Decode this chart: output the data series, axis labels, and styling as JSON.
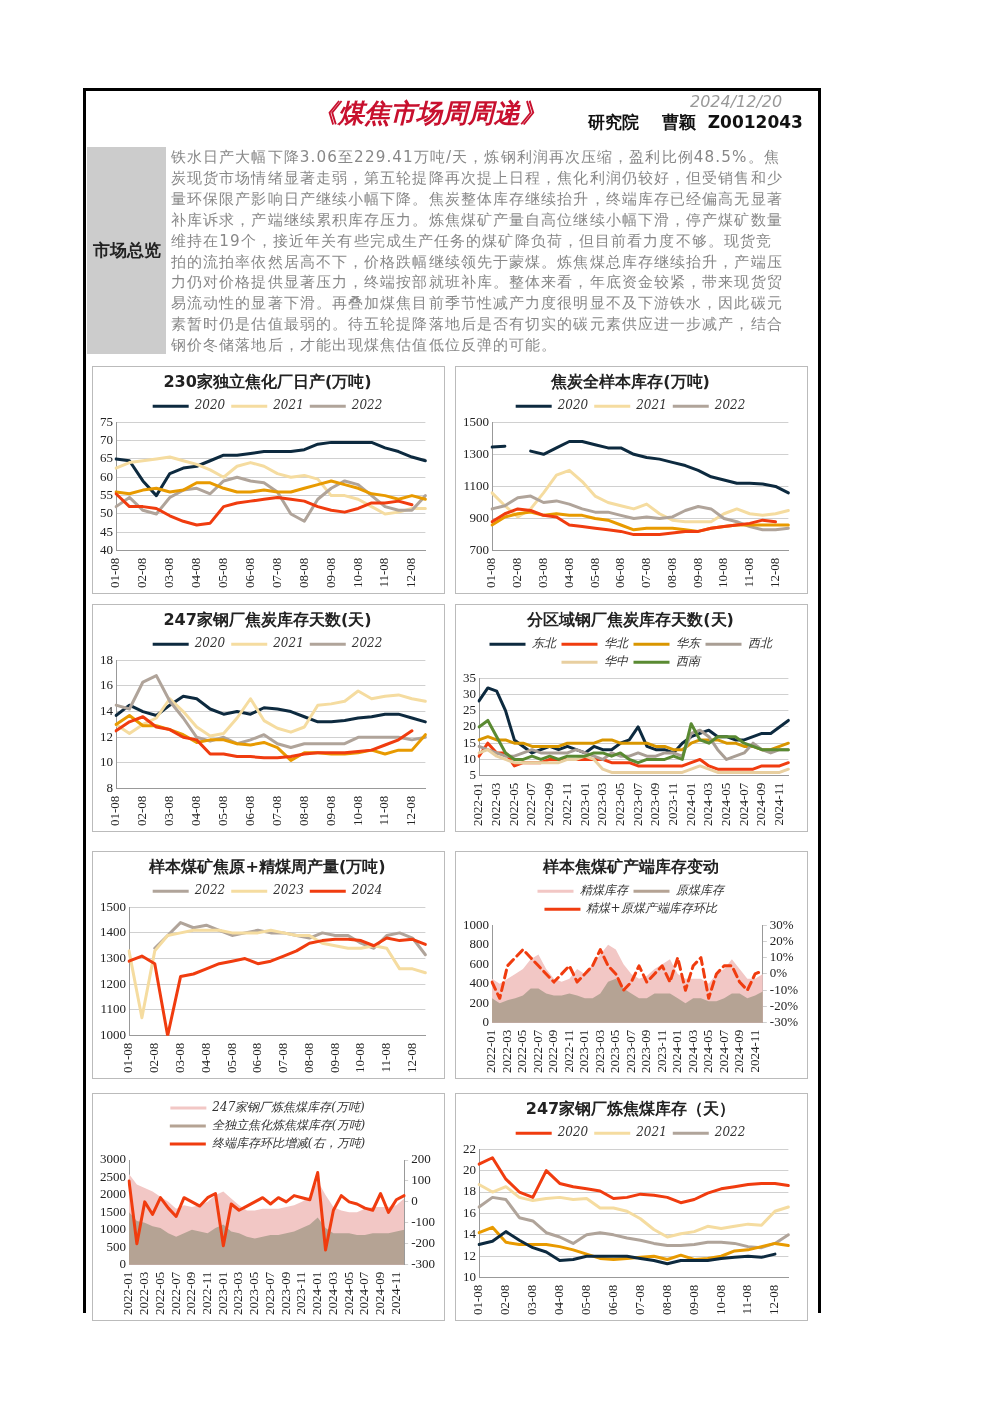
{
  "chart_data": [
    {
      "type": "other",
      "title": "《煤焦市场周周递》",
      "annotations": [
        "2024/12/20",
        "研究院　 曹颖  Z0012043",
        "市场总览",
        "铁水日产大幅下降3.06至229.41万吨/天，炼钢利润再次压缩，盈利比例48.5%。焦炭现货市场情绪显著走弱，第五轮提降再次提上日程，焦化利润仍较好，但受销售和少量环保限产影响日产继续小幅下降。焦炭整体库存继续抬升，终端库存已经偏高无显著补库诉求，产端继续累积库存压力。炼焦煤矿产量自高位继续小幅下滑，停产煤矿数量维持在19个，接近年关有些完成生产任务的煤矿降负荷，但目前看力度不够。现货竞拍的流拍率依然居高不下，价格跌幅继续领先于蒙煤。炼焦煤总库存继续抬升，产端压力仍对价格提供显著压力，终端按部就班补库。整体来看，年底资金较紧，带来现货贸易流动性的显著下滑。再叠加煤焦目前季节性减产力度很明显不及下游铁水，因此碳元素暂时仍是估值最弱的。待五轮提降落地后是否有切实的碳元素供应进一步减产，结合钢价冬储落地后，才能出现煤焦估值低位反弹的可能。"
      ]
    },
    {
      "type": "line",
      "title": "230家独立焦化厂日产(万吨)",
      "legend": "top",
      "grid": "y",
      "marker": "none",
      "line_style": "solid",
      "categories": [
        "01-08",
        null,
        "02-08",
        null,
        "03-08",
        null,
        "04-08",
        null,
        "05-08",
        null,
        "06-08",
        null,
        "07-08",
        null,
        "08-08",
        null,
        "09-08",
        null,
        "10-08",
        null,
        "11-08",
        null,
        "12-08",
        null
      ],
      "ylim": [
        40,
        75
      ],
      "yticks": [
        40,
        45,
        50,
        55,
        60,
        65,
        70,
        75
      ],
      "series": [
        {
          "name": "2020",
          "color": "#0d2a3f",
          "values": [
            65,
            64.5,
            59,
            55,
            61,
            62.5,
            63,
            64.5,
            66,
            66,
            66.5,
            67,
            67,
            67,
            67.5,
            69,
            69.5,
            69.5,
            69.5,
            69.5,
            68,
            67,
            65.5,
            64.5
          ]
        },
        {
          "name": "2021",
          "color": "#f5dca0",
          "values": [
            62.5,
            64,
            64.5,
            65,
            65.5,
            64.5,
            63.5,
            62,
            60,
            63,
            64,
            63,
            61,
            60,
            60.5,
            59.5,
            55,
            55,
            54,
            52,
            50,
            50.5,
            51.5,
            51.5
          ]
        },
        {
          "name": "2022",
          "color": "#b0a49a",
          "values": [
            52,
            54.5,
            51,
            50,
            54.5,
            56.5,
            57,
            55.5,
            59,
            60,
            59,
            58.5,
            56,
            50,
            48,
            54,
            57,
            59,
            58,
            55,
            52,
            51,
            51,
            55
          ]
        },
        {
          "color": "#e89a00",
          "values": [
            56,
            55.5,
            56.5,
            57,
            56,
            56.5,
            58.5,
            58.5,
            57,
            56,
            56,
            56.5,
            56,
            56,
            57,
            58,
            59,
            58,
            57,
            55.5,
            55,
            54,
            55,
            54
          ]
        },
        {
          "color": "#f03c0f",
          "values": [
            55.5,
            52,
            52,
            51.5,
            49.5,
            48,
            47,
            47.5,
            52,
            53,
            53.5,
            54,
            54.5,
            54,
            53.5,
            52,
            51,
            50.5,
            51.5,
            53,
            53,
            53.5,
            52.5,
            null
          ]
        }
      ]
    },
    {
      "type": "line",
      "title": "焦炭全样本库存(万吨)",
      "legend": "top",
      "grid": "y",
      "marker": "none",
      "line_style": "solid",
      "categories": [
        "01-08",
        null,
        "02-08",
        null,
        "03-08",
        null,
        "04-08",
        null,
        "05-08",
        null,
        "06-08",
        null,
        "07-08",
        null,
        "08-08",
        null,
        "09-08",
        null,
        "10-08",
        null,
        "11-08",
        null,
        "12-08",
        null
      ],
      "ylim": [
        700,
        1500
      ],
      "yticks": [
        700,
        900,
        1100,
        1300,
        1500
      ],
      "series": [
        {
          "name": "2020",
          "color": "#0d2a3f",
          "values": [
            1345,
            1350,
            null,
            1320,
            1300,
            1340,
            1380,
            1380,
            1360,
            1340,
            1340,
            1300,
            1280,
            1270,
            1250,
            1230,
            1200,
            1160,
            1140,
            1120,
            1120,
            1115,
            1100,
            1060
          ]
        },
        {
          "name": "2021",
          "color": "#f5dca0",
          "values": [
            1060,
            980,
            910,
            960,
            1060,
            1170,
            1200,
            1130,
            1040,
            1000,
            980,
            960,
            990,
            930,
            890,
            880,
            880,
            880,
            930,
            960,
            930,
            920,
            930,
            950
          ]
        },
        {
          "name": "2022",
          "color": "#b0a49a",
          "values": [
            960,
            980,
            1030,
            1040,
            1000,
            1010,
            990,
            960,
            940,
            940,
            920,
            900,
            910,
            900,
            910,
            950,
            975,
            960,
            900,
            880,
            850,
            830,
            830,
            840
          ]
        },
        {
          "color": "#e89a00",
          "values": [
            860,
            910,
            930,
            940,
            920,
            930,
            920,
            920,
            900,
            890,
            860,
            830,
            840,
            840,
            840,
            830,
            820,
            840,
            850,
            860,
            860,
            860,
            860,
            860
          ]
        },
        {
          "color": "#f03c0f",
          "values": [
            880,
            930,
            960,
            950,
            920,
            910,
            860,
            850,
            840,
            830,
            820,
            800,
            800,
            800,
            810,
            820,
            820,
            840,
            850,
            860,
            870,
            890,
            880,
            null
          ]
        }
      ]
    },
    {
      "type": "line",
      "title": "247家钢厂焦炭库存天数(天)",
      "legend": "top",
      "grid": "y",
      "marker": "none",
      "line_style": "solid",
      "categories": [
        "01-08",
        null,
        "02-08",
        null,
        "03-08",
        null,
        "04-08",
        null,
        "05-08",
        null,
        "06-08",
        null,
        "07-08",
        null,
        "08-08",
        null,
        "09-08",
        null,
        "10-08",
        null,
        "11-08",
        null,
        "12-08",
        null
      ],
      "ylim": [
        8,
        18
      ],
      "yticks": [
        8,
        10,
        12,
        14,
        16,
        18
      ],
      "series": [
        {
          "name": "2020",
          "color": "#0d2a3f",
          "values": [
            13.7,
            14.5,
            14,
            13.7,
            14.5,
            15.2,
            15,
            14.2,
            13.8,
            14,
            13.8,
            14.3,
            14.2,
            14,
            13.6,
            13.2,
            13.2,
            13.3,
            13.5,
            13.6,
            13.8,
            13.8,
            13.5,
            13.2
          ]
        },
        {
          "name": "2021",
          "color": "#f5dca0",
          "values": [
            13,
            12.3,
            13,
            13.5,
            15,
            14,
            12.8,
            12.1,
            12.3,
            13.5,
            15,
            13.3,
            12.7,
            12.4,
            12.8,
            14.5,
            14.6,
            14.8,
            15.6,
            15,
            15.2,
            15.3,
            15,
            14.8
          ]
        },
        {
          "name": "2022",
          "color": "#b0a49a",
          "values": [
            14.5,
            14.2,
            16.3,
            16.8,
            14.8,
            13.5,
            12,
            11.7,
            12,
            11.5,
            11.8,
            12.2,
            11.5,
            11.2,
            11.5,
            11.5,
            11.5,
            11.5,
            12,
            12,
            12,
            12,
            11.8,
            12
          ]
        },
        {
          "color": "#e89a00",
          "values": [
            13,
            13.7,
            12.9,
            12.9,
            12.6,
            12.2,
            11.6,
            11.8,
            11.8,
            11.5,
            11.4,
            11.6,
            11.2,
            10.2,
            10.8,
            10.8,
            10.7,
            10.7,
            10.8,
            11,
            10.7,
            11,
            11,
            12.2
          ]
        },
        {
          "color": "#f03c0f",
          "values": [
            12.5,
            13.2,
            13.6,
            12.8,
            12.6,
            12,
            11.8,
            10.7,
            10.7,
            10.5,
            10.5,
            10.4,
            10.4,
            10.5,
            10.7,
            10.8,
            10.8,
            10.8,
            10.9,
            11,
            11.4,
            11.8,
            12.5,
            null
          ]
        }
      ]
    },
    {
      "type": "line",
      "title": "分区域钢厂焦炭库存天数(天)",
      "legend": "top",
      "grid": "y",
      "marker": "none",
      "line_style": "solid",
      "categories": [
        "2022-01",
        null,
        "2022-03",
        null,
        "2022-05",
        null,
        "2022-07",
        null,
        "2022-09",
        null,
        "2022-11",
        null,
        "2023-01",
        null,
        "2023-03",
        null,
        "2023-05",
        null,
        "2023-07",
        null,
        "2023-09",
        null,
        "2023-11",
        null,
        "2024-01",
        null,
        "2024-03",
        null,
        "2024-05",
        null,
        "2024-07",
        null,
        "2024-09",
        null,
        "2024-11",
        null
      ],
      "ylim": [
        5,
        35
      ],
      "yticks": [
        5,
        10,
        15,
        20,
        25,
        30,
        35
      ],
      "series": [
        {
          "name": "东北",
          "color": "#0d2a3f",
          "values": [
            28,
            32,
            31,
            25,
            16,
            14,
            12,
            13,
            14,
            13,
            14,
            13,
            12,
            14,
            13,
            13,
            15,
            16,
            20,
            14,
            13,
            13,
            12,
            15,
            17,
            18,
            19,
            17,
            17,
            16,
            16,
            17,
            18,
            18,
            20,
            22
          ]
        },
        {
          "name": "华北",
          "color": "#f03c0f",
          "values": [
            11,
            15,
            12,
            12,
            8,
            9,
            9,
            9,
            10,
            10,
            10,
            10,
            10,
            10,
            10,
            9,
            9,
            9,
            8,
            8,
            8,
            8,
            8,
            8,
            9,
            10,
            8,
            7,
            7,
            7,
            7,
            7,
            8,
            8,
            8,
            9
          ]
        },
        {
          "name": "华东",
          "color": "#d99600",
          "values": [
            16,
            17,
            16,
            16,
            15,
            15,
            14,
            14,
            14,
            14,
            15,
            15,
            15,
            15,
            16,
            16,
            15,
            15,
            15,
            15,
            14,
            14,
            13,
            13,
            15,
            16,
            16,
            16,
            15,
            15,
            14,
            14,
            13,
            13,
            14,
            15
          ]
        },
        {
          "name": "西北",
          "color": "#a99e94",
          "values": [
            14,
            13,
            12,
            11,
            11,
            12,
            13,
            12,
            12,
            12,
            12,
            13,
            12,
            11,
            10,
            12,
            11,
            11,
            12,
            11,
            11,
            12,
            12,
            11,
            18,
            19,
            17,
            13,
            10,
            11,
            12,
            15,
            13,
            12,
            13,
            13
          ]
        },
        {
          "name": "华中",
          "color": "#e8cfa0",
          "values": [
            12,
            13,
            11,
            10,
            9,
            9,
            9,
            9,
            9,
            9,
            10,
            10,
            11,
            10,
            7,
            6,
            6,
            6,
            6,
            6,
            6,
            6,
            6,
            6,
            7,
            8,
            7,
            6,
            6,
            6,
            6,
            6,
            6,
            6,
            6,
            7
          ]
        },
        {
          "name": "西南",
          "color": "#5a8a32",
          "values": [
            20,
            22,
            17,
            12,
            10,
            10,
            11,
            10,
            11,
            10,
            11,
            11,
            11,
            12,
            12,
            11,
            12,
            10,
            9,
            10,
            10,
            10,
            11,
            10,
            21,
            16,
            15,
            17,
            17,
            17,
            15,
            14,
            13,
            13,
            13,
            13
          ]
        }
      ]
    },
    {
      "type": "line",
      "title": "样本煤矿焦原+精煤周产量(万吨)",
      "legend": "top",
      "grid": "y",
      "marker": "none",
      "line_style": "solid",
      "categories": [
        "01-08",
        null,
        "02-08",
        null,
        "03-08",
        null,
        "04-08",
        null,
        "05-08",
        null,
        "06-08",
        null,
        "07-08",
        null,
        "08-08",
        null,
        "09-08",
        null,
        "10-08",
        null,
        "11-08",
        null,
        "12-08",
        null
      ],
      "ylim": [
        1000,
        1500
      ],
      "yticks": [
        1000,
        1100,
        1200,
        1300,
        1400,
        1500
      ],
      "series": [
        {
          "name": "2022",
          "color": "#b0a49a",
          "values": [
            null,
            null,
            1340,
            1390,
            1440,
            1420,
            1430,
            1410,
            1390,
            1400,
            1410,
            1400,
            1400,
            1390,
            1380,
            1400,
            1390,
            1390,
            1360,
            1340,
            1390,
            1400,
            1380,
            1315
          ]
        },
        {
          "name": "2023",
          "color": "#f5dca0",
          "values": [
            1330,
            1070,
            1330,
            1390,
            1400,
            1410,
            1410,
            1410,
            1400,
            1400,
            1400,
            1410,
            1400,
            1390,
            1390,
            1360,
            1350,
            1340,
            1340,
            1350,
            1340,
            1260,
            1260,
            1245
          ]
        },
        {
          "name": "2024",
          "color": "#f03c0f",
          "values": [
            1290,
            1310,
            1280,
            1000,
            1230,
            1240,
            1260,
            1280,
            1290,
            1300,
            1280,
            1290,
            1310,
            1330,
            1360,
            1370,
            1375,
            1375,
            1370,
            1350,
            1380,
            1370,
            1375,
            1355
          ]
        }
      ]
    },
    {
      "type": "area",
      "title": "样本焦煤矿产端库存变动",
      "legend": "top",
      "grid": false,
      "marker": "none",
      "categories": [
        "2022-01",
        null,
        "2022-03",
        null,
        "2022-05",
        null,
        "2022-07",
        null,
        "2022-09",
        null,
        "2022-11",
        null,
        "2023-01",
        null,
        "2023-03",
        null,
        "2023-05",
        null,
        "2023-07",
        null,
        "2023-09",
        null,
        "2023-11",
        null,
        "2024-01",
        null,
        "2024-03",
        null,
        "2024-05",
        null,
        "2024-07",
        null,
        "2024-09",
        null,
        "2024-11",
        null
      ],
      "ylim": [
        0,
        1000
      ],
      "yticks": [
        0,
        200,
        400,
        600,
        800,
        1000
      ],
      "y2lim": [
        -30,
        30
      ],
      "y2ticks": [
        {
          "value": 30,
          "label": "30%"
        },
        {
          "value": 20,
          "label": "20%"
        },
        {
          "value": 10,
          "label": "10%"
        },
        {
          "value": 0,
          "label": "0%"
        },
        {
          "value": -10,
          "label": "-10%"
        },
        {
          "value": -20,
          "label": "-20%"
        },
        {
          "value": -30,
          "label": "-30%"
        }
      ],
      "series": [
        {
          "name": "精煤库存",
          "color": "#f2c7c5",
          "values": [
            450,
            400,
            450,
            500,
            550,
            650,
            700,
            550,
            450,
            420,
            450,
            550,
            500,
            600,
            700,
            800,
            750,
            600,
            500,
            450,
            480,
            550,
            600,
            650,
            500,
            450,
            450,
            450,
            400,
            500,
            550,
            650,
            550,
            450,
            450,
            500
          ]
        },
        {
          "name": "原煤库存",
          "color": "#b5a394",
          "values": [
            250,
            200,
            230,
            250,
            280,
            350,
            350,
            300,
            280,
            280,
            300,
            280,
            250,
            250,
            300,
            420,
            450,
            350,
            300,
            250,
            250,
            300,
            300,
            300,
            250,
            200,
            250,
            250,
            220,
            220,
            250,
            300,
            300,
            250,
            280,
            320
          ]
        },
        {
          "name": "精煤+原煤产端库存环比",
          "type": "line",
          "axis": "y2",
          "line_style": "dashed",
          "color": "#f03c0f",
          "values": [
            -5,
            -15,
            5,
            10,
            15,
            10,
            5,
            0,
            -5,
            0,
            5,
            -5,
            0,
            5,
            15,
            5,
            0,
            -10,
            -5,
            5,
            -5,
            0,
            5,
            -5,
            10,
            -10,
            5,
            10,
            -15,
            0,
            5,
            5,
            -5,
            -10,
            0,
            2
          ]
        }
      ]
    },
    {
      "type": "area",
      "legend": "top",
      "grid": false,
      "marker": "none",
      "categories": [
        "2022-01",
        null,
        "2022-03",
        null,
        "2022-05",
        null,
        "2022-07",
        null,
        "2022-09",
        null,
        "2022-11",
        null,
        "2023-01",
        null,
        "2023-03",
        null,
        "2023-05",
        null,
        "2023-07",
        null,
        "2023-09",
        null,
        "2023-11",
        null,
        "2024-01",
        null,
        "2024-03",
        null,
        "2024-05",
        null,
        "2024-07",
        null,
        "2024-09",
        null,
        "2024-11",
        null
      ],
      "ylim": [
        0,
        3000
      ],
      "yticks": [
        0,
        500,
        1000,
        1500,
        2000,
        2500,
        3000
      ],
      "y2lim": [
        -300,
        200
      ],
      "y2ticks": [
        {
          "value": 200,
          "label": "200"
        },
        {
          "value": 100,
          "label": "100"
        },
        {
          "value": 0,
          "label": "0"
        },
        {
          "value": -100,
          "label": "-100"
        },
        {
          "value": -200,
          "label": "-200"
        },
        {
          "value": -300,
          "label": "-300"
        }
      ],
      "series": [
        {
          "name": "247家钢厂炼焦煤库存(万吨)",
          "color": "#f2c7c5",
          "values": [
            2600,
            2300,
            2200,
            2100,
            1950,
            1800,
            1600,
            1700,
            1650,
            1700,
            1800,
            2000,
            2100,
            1900,
            1700,
            1550,
            1550,
            1600,
            1600,
            1600,
            1650,
            1700,
            1800,
            1950,
            2400,
            2000,
            1650,
            1550,
            1500,
            1500,
            1600,
            1650,
            1650,
            1650,
            1700,
            1900
          ]
        },
        {
          "name": "全独立焦化炼焦煤库存(万吨)",
          "color": "#b5a394",
          "values": [
            1500,
            1250,
            1200,
            1100,
            1050,
            900,
            800,
            900,
            1000,
            950,
            900,
            1050,
            1150,
            950,
            900,
            800,
            750,
            800,
            850,
            850,
            900,
            950,
            1050,
            1150,
            1350,
            1050,
            900,
            900,
            900,
            850,
            850,
            900,
            900,
            900,
            950,
            1000
          ]
        },
        {
          "name": "终端库存环比增减(右，万吨)",
          "type": "line",
          "axis": "y2",
          "line_style": "solid",
          "color": "#f03c0f",
          "values": [
            100,
            -200,
            0,
            -60,
            20,
            -30,
            -70,
            20,
            0,
            -20,
            20,
            40,
            -210,
            -10,
            -40,
            -20,
            0,
            20,
            -10,
            20,
            0,
            30,
            20,
            10,
            140,
            -230,
            -40,
            30,
            0,
            -10,
            -30,
            -40,
            40,
            -50,
            10,
            30
          ]
        }
      ]
    },
    {
      "type": "line",
      "title": "247家钢厂炼焦煤库存（天）",
      "legend": "top",
      "grid": "y",
      "marker": "none",
      "line_style": "solid",
      "categories": [
        "01-08",
        null,
        "02-08",
        null,
        "03-08",
        null,
        "04-08",
        null,
        "05-08",
        null,
        "06-08",
        null,
        "07-08",
        null,
        "08-08",
        null,
        "09-08",
        null,
        "10-08",
        null,
        "11-08",
        null,
        "12-08",
        null
      ],
      "ylim": [
        10,
        22
      ],
      "yticks": [
        10,
        12,
        14,
        16,
        18,
        20,
        22
      ],
      "series": [
        {
          "name": "2020",
          "color": "#f03c0f",
          "values": [
            20.6,
            21.2,
            19.2,
            18,
            17.5,
            20,
            18.8,
            18.5,
            18.3,
            18.1,
            17.4,
            17.5,
            17.8,
            17.7,
            17.5,
            17,
            17.3,
            17.9,
            18.3,
            18.5,
            18.7,
            18.8,
            18.8,
            18.6
          ]
        },
        {
          "name": "2021",
          "color": "#f5dca0",
          "values": [
            18.7,
            18,
            18.5,
            17.5,
            17.2,
            17.4,
            17.5,
            17.3,
            17.4,
            16.5,
            16.5,
            16.2,
            15.5,
            14.5,
            13.8,
            14.1,
            14.3,
            14.8,
            14.6,
            14.8,
            15,
            14.9,
            16.2,
            16.6
          ]
        },
        {
          "name": "2022",
          "color": "#b0a49a",
          "values": [
            16.6,
            17.5,
            17.3,
            15.6,
            15.3,
            14.2,
            13.8,
            13.2,
            14,
            14.2,
            14,
            13.7,
            13.5,
            13.2,
            13,
            13,
            13.1,
            13.3,
            13.3,
            13.2,
            12.9,
            12.8,
            13.2,
            14
          ]
        },
        {
          "color": "#e89a00",
          "values": [
            14.2,
            14.7,
            13.3,
            13.1,
            13.1,
            13.1,
            12.9,
            12.6,
            12.2,
            11.8,
            11.7,
            11.8,
            11.9,
            12,
            11.7,
            12.1,
            11.7,
            11.8,
            12,
            12.5,
            12.6,
            12.9,
            13.2,
            13
          ]
        },
        {
          "color": "#0d2a3f",
          "values": [
            13.1,
            13.4,
            14.3,
            13.5,
            12.8,
            12.4,
            11.6,
            11.7,
            12,
            12,
            12,
            12,
            11.8,
            11.6,
            11.3,
            11.6,
            11.6,
            11.6,
            11.8,
            11.9,
            12,
            11.9,
            12.2,
            null
          ]
        }
      ]
    }
  ]
}
